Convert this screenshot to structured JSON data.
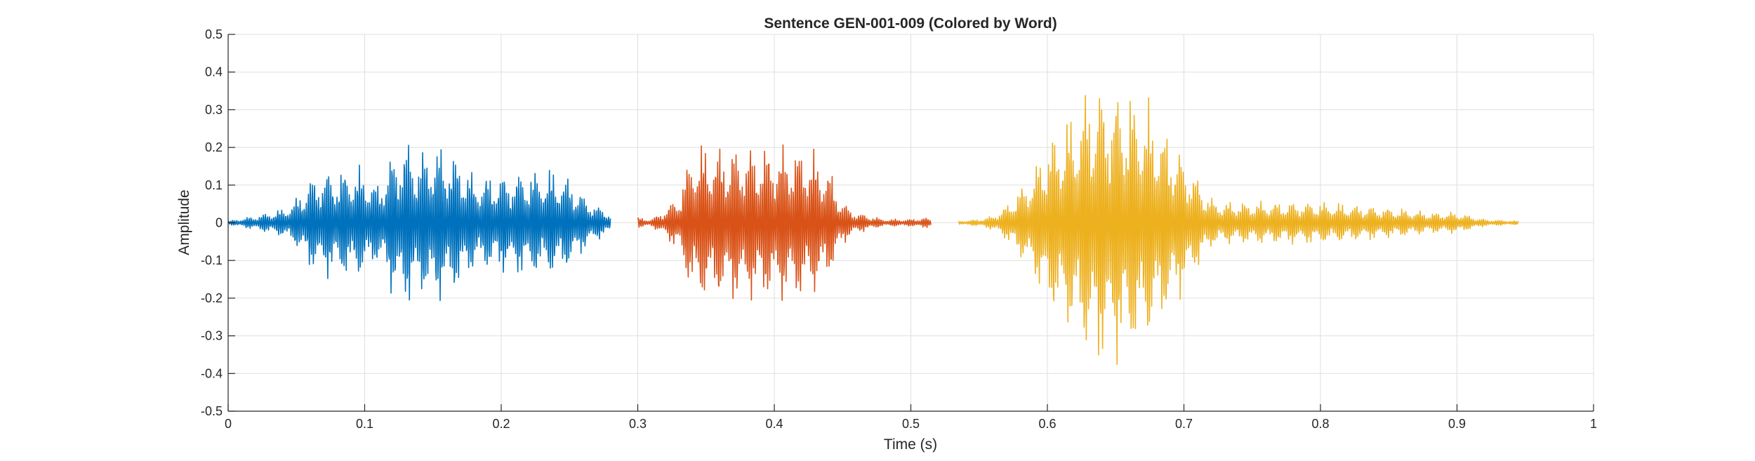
{
  "chart_data": {
    "type": "line",
    "title": "Sentence GEN-001-009 (Colored by Word)",
    "xlabel": "Time (s)",
    "ylabel": "Amplitude",
    "xlim": [
      0,
      1
    ],
    "ylim": [
      -0.5,
      0.5
    ],
    "xticks": [
      0,
      0.1,
      0.2,
      0.3,
      0.4,
      0.5,
      0.6,
      0.7,
      0.8,
      0.9,
      1
    ],
    "xtick_labels": [
      "0",
      "0.1",
      "0.2",
      "0.3",
      "0.4",
      "0.5",
      "0.6",
      "0.7",
      "0.8",
      "0.9",
      "1"
    ],
    "yticks": [
      0.5,
      0.4,
      0.3,
      0.2,
      0.1,
      0,
      -0.1,
      -0.2,
      -0.3,
      -0.4,
      -0.5
    ],
    "ytick_labels": [
      "0.5",
      "0.4",
      "0.3",
      "0.2",
      "0.1",
      "0",
      "-0.1",
      "-0.2",
      "-0.3",
      "-0.4",
      "-0.5"
    ],
    "grid": true,
    "legend": "none",
    "series": [
      {
        "color": "#0072BD",
        "x": [
          0.0,
          0.02,
          0.04,
          0.05,
          0.06,
          0.07,
          0.08,
          0.09,
          0.1,
          0.11,
          0.12,
          0.13,
          0.14,
          0.15,
          0.16,
          0.17,
          0.18,
          0.2,
          0.22,
          0.24,
          0.25,
          0.26,
          0.27,
          0.28
        ],
        "amplitude": [
          0.005,
          0.02,
          0.04,
          0.07,
          0.13,
          0.15,
          0.15,
          0.16,
          0.15,
          0.11,
          0.2,
          0.24,
          0.2,
          0.23,
          0.21,
          0.19,
          0.13,
          0.14,
          0.15,
          0.15,
          0.13,
          0.08,
          0.05,
          0.03
        ]
      },
      {
        "color": "#D95319",
        "x": [
          0.3,
          0.31,
          0.32,
          0.33,
          0.34,
          0.35,
          0.36,
          0.38,
          0.4,
          0.42,
          0.43,
          0.44,
          0.45,
          0.46,
          0.47,
          0.48,
          0.49,
          0.5,
          0.51,
          0.515
        ],
        "amplitude": [
          0.015,
          0.01,
          0.04,
          0.08,
          0.22,
          0.22,
          0.22,
          0.22,
          0.22,
          0.22,
          0.2,
          0.16,
          0.06,
          0.03,
          0.02,
          0.01,
          0.01,
          0.01,
          0.015,
          0.01
        ]
      },
      {
        "color": "#EDB120",
        "x": [
          0.535,
          0.55,
          0.56,
          0.57,
          0.58,
          0.59,
          0.6,
          0.61,
          0.62,
          0.63,
          0.64,
          0.65,
          0.66,
          0.67,
          0.68,
          0.69,
          0.7,
          0.71,
          0.72,
          0.73,
          0.75,
          0.77,
          0.8,
          0.83,
          0.86,
          0.88,
          0.9,
          0.92,
          0.945
        ],
        "amplitude": [
          0.005,
          0.01,
          0.02,
          0.05,
          0.1,
          0.15,
          0.24,
          0.28,
          0.32,
          0.39,
          0.4,
          0.39,
          0.38,
          0.35,
          0.31,
          0.25,
          0.19,
          0.13,
          0.07,
          0.06,
          0.06,
          0.06,
          0.06,
          0.05,
          0.04,
          0.03,
          0.03,
          0.01,
          0.005
        ]
      }
    ]
  }
}
